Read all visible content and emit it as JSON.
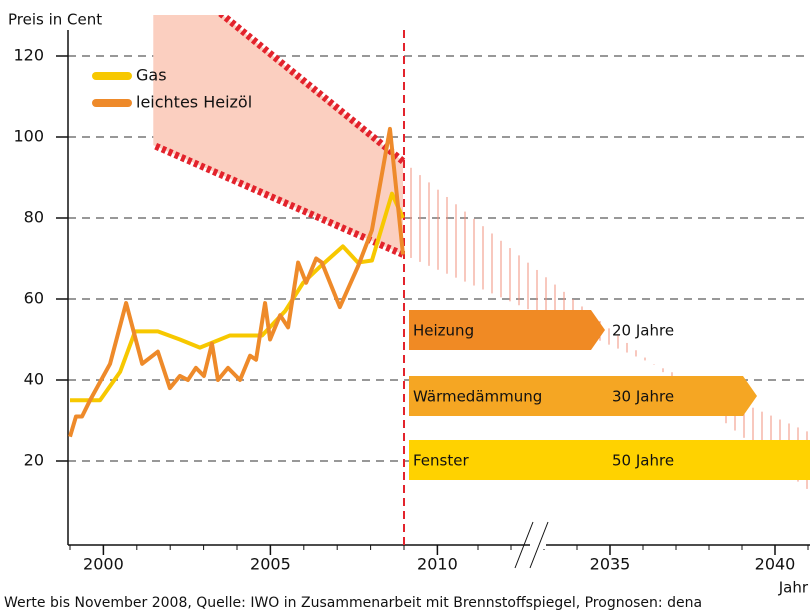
{
  "chart_data": {
    "type": "line",
    "y_axis_label": "Preis in Cent",
    "x_axis_label": "Jahr",
    "footnote": "Werte bis November 2008, Quelle: IWO in Zusammenarbeit mit Brennstoffspiegel, Prognosen: dena",
    "ylim": [
      0,
      120
    ],
    "yticks": [
      20,
      40,
      60,
      80,
      100,
      120
    ],
    "xticks": [
      2000,
      2005,
      2010,
      2035,
      2040
    ],
    "grid": true,
    "legend_position": "upper left",
    "series": [
      {
        "name": "Gas",
        "color": "#f7c800",
        "x": [
          1999,
          1999.9,
          2000.5,
          2000.95,
          2001.63,
          2002.29,
          2002.89,
          2003.79,
          2004.75,
          2005.44,
          2005.98,
          2006.49,
          2007.17,
          2007.62,
          2008.04,
          2008.64,
          2008.97
        ],
        "values": [
          35,
          35,
          42,
          52,
          52,
          50,
          48,
          51,
          51,
          57,
          64,
          68,
          73,
          69,
          69.5,
          86,
          80
        ]
      },
      {
        "name": "leichtes Heizöl",
        "color": "#ee8a2a",
        "x": [
          1999,
          1999.18,
          1999.36,
          1999.6,
          2000.2,
          2000.68,
          2001.16,
          2001.63,
          2001.99,
          2002.29,
          2002.53,
          2002.77,
          2003.01,
          2003.25,
          2003.43,
          2003.73,
          2004.09,
          2004.39,
          2004.57,
          2004.84,
          2004.99,
          2005.29,
          2005.53,
          2005.83,
          2006.07,
          2006.37,
          2006.54,
          2007.08,
          2007.62,
          2008.04,
          2008.58,
          2008.97
        ],
        "values": [
          26,
          31,
          31,
          35,
          44,
          59,
          44,
          47,
          38,
          41,
          40,
          43,
          41,
          49,
          40,
          43,
          40,
          46,
          45,
          59,
          50,
          56,
          53,
          69,
          64,
          70,
          69,
          58,
          68,
          77,
          102,
          71
        ]
      }
    ],
    "forecast": {
      "x": [
        2008.97,
        2021.16
      ],
      "upper": [
        94,
        144
      ],
      "lower": [
        71,
        98
      ],
      "color": "#e3232c"
    },
    "bars": [
      {
        "name": "Heizung",
        "label": "20 Jahre",
        "value": 20,
        "color": "#f08a24"
      },
      {
        "name": "Wärmedämmung",
        "label": "30 Jahre",
        "value": 30,
        "color": "#f5a623"
      },
      {
        "name": "Fenster",
        "label": "50 Jahre",
        "value": 50,
        "color": "#ffd200"
      }
    ]
  }
}
